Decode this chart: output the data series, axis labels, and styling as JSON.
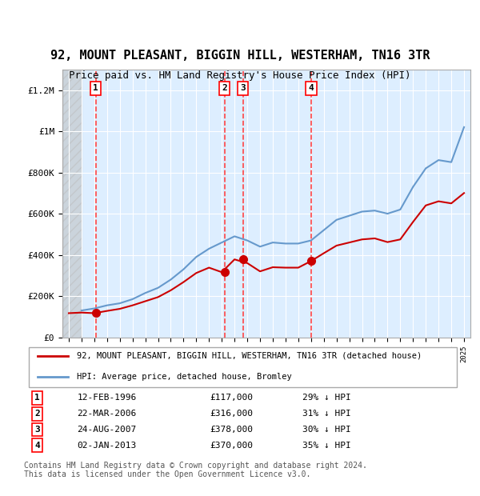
{
  "title": "92, MOUNT PLEASANT, BIGGIN HILL, WESTERHAM, TN16 3TR",
  "subtitle": "Price paid vs. HM Land Registry's House Price Index (HPI)",
  "ylabel_ticks": [
    "£0",
    "£200K",
    "£400K",
    "£600K",
    "£800K",
    "£1M",
    "£1.2M"
  ],
  "ytick_values": [
    0,
    200000,
    400000,
    600000,
    800000,
    1000000,
    1200000
  ],
  "ylim": [
    0,
    1300000
  ],
  "xlim_start": 1993.5,
  "xlim_end": 2025.5,
  "hatch_end": 1995.0,
  "background_color": "#ddeeff",
  "hatch_color": "#cccccc",
  "sale_dates": [
    1996.12,
    2006.22,
    2007.65,
    2013.01
  ],
  "sale_prices": [
    117000,
    316000,
    378000,
    370000
  ],
  "sale_labels": [
    "1",
    "2",
    "3",
    "4"
  ],
  "sale_pct": [
    "29% ↓ HPI",
    "31% ↓ HPI",
    "30% ↓ HPI",
    "35% ↓ HPI"
  ],
  "sale_date_strs": [
    "12-FEB-1996",
    "22-MAR-2006",
    "24-AUG-2007",
    "02-JAN-2013"
  ],
  "sale_price_strs": [
    "£117,000",
    "£316,000",
    "£378,000",
    "£370,000"
  ],
  "red_line_color": "#cc0000",
  "blue_line_color": "#6699cc",
  "marker_color": "#cc0000",
  "vline_color": "#ff4444",
  "legend1": "92, MOUNT PLEASANT, BIGGIN HILL, WESTERHAM, TN16 3TR (detached house)",
  "legend2": "HPI: Average price, detached house, Bromley",
  "footnote": "Contains HM Land Registry data © Crown copyright and database right 2024.\nThis data is licensed under the Open Government Licence v3.0.",
  "hpi_years": [
    1995,
    1996,
    1997,
    1998,
    1999,
    2000,
    2001,
    2002,
    2003,
    2004,
    2005,
    2006,
    2007,
    2008,
    2009,
    2010,
    2011,
    2012,
    2013,
    2014,
    2015,
    2016,
    2017,
    2018,
    2019,
    2020,
    2021,
    2022,
    2023,
    2024,
    2025
  ],
  "hpi_values": [
    130000,
    140000,
    155000,
    165000,
    185000,
    215000,
    240000,
    280000,
    330000,
    390000,
    430000,
    460000,
    490000,
    470000,
    440000,
    460000,
    455000,
    455000,
    470000,
    520000,
    570000,
    590000,
    610000,
    615000,
    600000,
    620000,
    730000,
    820000,
    860000,
    850000,
    1020000
  ],
  "red_years": [
    1994,
    1995,
    1996,
    1997,
    1998,
    1999,
    2000,
    2001,
    2002,
    2003,
    2004,
    2005,
    2006,
    2007,
    2008,
    2009,
    2010,
    2011,
    2012,
    2013,
    2014,
    2015,
    2016,
    2017,
    2018,
    2019,
    2020,
    2021,
    2022,
    2023,
    2024,
    2025
  ],
  "red_values": [
    117000,
    120000,
    117000,
    128000,
    138000,
    155000,
    175000,
    195000,
    228000,
    268000,
    312000,
    338000,
    316000,
    378000,
    360000,
    320000,
    340000,
    338000,
    338000,
    370000,
    408000,
    445000,
    460000,
    475000,
    480000,
    462000,
    475000,
    560000,
    640000,
    660000,
    650000,
    700000
  ]
}
